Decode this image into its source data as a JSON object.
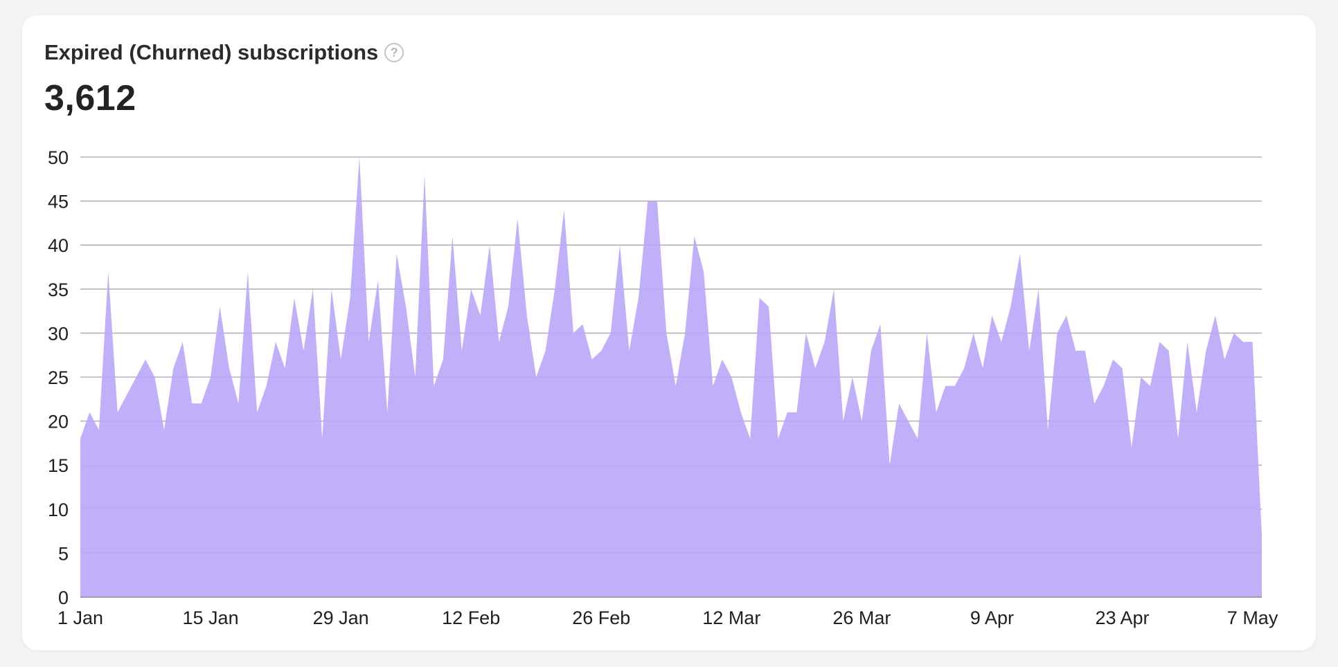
{
  "header": {
    "title": "Expired (Churned) subscriptions",
    "help_icon": "question-circle-icon",
    "total": "3,612"
  },
  "colors": {
    "area_fill": "#bca8fa",
    "grid": "#b3b3b8"
  },
  "chart_data": {
    "type": "area",
    "title": "Expired (Churned) subscriptions",
    "xlabel": "",
    "ylabel": "",
    "ylim": [
      0,
      50
    ],
    "yticks": [
      "0",
      "5",
      "10",
      "15",
      "20",
      "25",
      "30",
      "35",
      "40",
      "45",
      "50"
    ],
    "xticks": [
      {
        "day": 0,
        "label": "1 Jan"
      },
      {
        "day": 14,
        "label": "15 Jan"
      },
      {
        "day": 28,
        "label": "29 Jan"
      },
      {
        "day": 42,
        "label": "12 Feb"
      },
      {
        "day": 56,
        "label": "26 Feb"
      },
      {
        "day": 70,
        "label": "12 Mar"
      },
      {
        "day": 84,
        "label": "26 Mar"
      },
      {
        "day": 98,
        "label": "9 Apr"
      },
      {
        "day": 112,
        "label": "23 Apr"
      },
      {
        "day": 126,
        "label": "7 May"
      }
    ],
    "grid": true,
    "series": [
      {
        "name": "Expired subscriptions",
        "start": "1 Jan",
        "values": [
          18,
          21,
          19,
          37,
          21,
          23,
          25,
          27,
          25,
          19,
          26,
          29,
          22,
          22,
          25,
          33,
          26,
          22,
          37,
          21,
          24,
          29,
          26,
          34,
          28,
          35,
          18,
          35,
          27,
          34,
          50,
          29,
          36,
          21,
          39,
          33,
          25,
          48,
          24,
          27,
          41,
          28,
          35,
          32,
          40,
          29,
          33,
          43,
          32,
          25,
          28,
          35,
          44,
          30,
          31,
          27,
          28,
          30,
          40,
          28,
          34,
          45,
          45,
          30,
          24,
          30,
          41,
          37,
          24,
          27,
          25,
          21,
          18,
          34,
          33,
          18,
          21,
          21,
          30,
          26,
          29,
          35,
          20,
          25,
          20,
          28,
          31,
          15,
          22,
          20,
          18,
          30,
          21,
          24,
          24,
          26,
          30,
          26,
          32,
          29,
          33,
          39,
          28,
          35,
          19,
          30,
          32,
          28,
          28,
          22,
          24,
          27,
          26,
          17,
          25,
          24,
          29,
          28,
          18,
          29,
          21,
          28,
          32,
          27,
          30,
          29,
          29,
          7
        ]
      }
    ]
  }
}
